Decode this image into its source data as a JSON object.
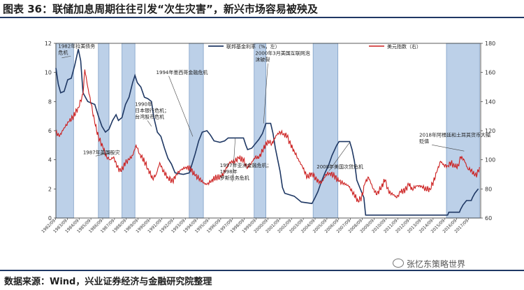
{
  "header": {
    "title": "图表 36：联储加息周期往往引发“次生灾害”，新兴市场容易被殃及"
  },
  "footer": {
    "source": "数据来源：Wind，兴业证券经济与金融研究院整理",
    "watermark": "张忆东策略世界"
  },
  "colors": {
    "fed": "#1f3864",
    "dollar": "#cc1f1f",
    "shade": "#bcd0e8",
    "shade_edge": "#7f9fc6"
  },
  "chart_data": {
    "type": "line",
    "legend_position": "top",
    "y_left": {
      "lim": [
        0,
        12
      ],
      "ticks": [
        0,
        2,
        4,
        6,
        8,
        10,
        12
      ]
    },
    "y_right": {
      "lim": [
        60,
        180
      ],
      "ticks": [
        60,
        80,
        100,
        120,
        140,
        160,
        180
      ]
    },
    "x_ticks": [
      "1982/09",
      "1983/09",
      "1984/09",
      "1985/09",
      "1986/09",
      "1987/09",
      "1988/09",
      "1989/09",
      "1990/09",
      "1991/09",
      "1992/09",
      "1993/09",
      "1994/09",
      "1995/09",
      "1996/09",
      "1997/09",
      "1998/09",
      "1999/09",
      "2000/09",
      "2001/09",
      "2002/09",
      "2003/09",
      "2004/09",
      "2005/09",
      "2006/09",
      "2007/09",
      "2008/09",
      "2009/09",
      "2010/09",
      "2011/09",
      "2012/09",
      "2013/09",
      "2014/09",
      "2015/09",
      "2016/09",
      "2017/09"
    ],
    "series": [
      {
        "name": "联邦基金利率（%，左）",
        "axis": "left",
        "points": [
          [
            1982.7,
            10.3
          ],
          [
            1982.9,
            9.2
          ],
          [
            1983.1,
            8.6
          ],
          [
            1983.4,
            8.7
          ],
          [
            1983.7,
            9.5
          ],
          [
            1984.0,
            9.6
          ],
          [
            1984.3,
            10.5
          ],
          [
            1984.6,
            11.6
          ],
          [
            1984.8,
            10.8
          ],
          [
            1985.0,
            8.6
          ],
          [
            1985.4,
            8.0
          ],
          [
            1985.7,
            7.9
          ],
          [
            1986.0,
            7.8
          ],
          [
            1986.3,
            7.0
          ],
          [
            1986.6,
            6.3
          ],
          [
            1986.9,
            5.9
          ],
          [
            1987.2,
            6.1
          ],
          [
            1987.5,
            6.7
          ],
          [
            1987.8,
            7.1
          ],
          [
            1988.0,
            6.7
          ],
          [
            1988.3,
            6.9
          ],
          [
            1988.6,
            7.8
          ],
          [
            1988.9,
            8.3
          ],
          [
            1989.2,
            9.3
          ],
          [
            1989.4,
            9.8
          ],
          [
            1989.6,
            9.3
          ],
          [
            1989.9,
            9.0
          ],
          [
            1990.2,
            8.3
          ],
          [
            1990.5,
            8.2
          ],
          [
            1990.8,
            8.0
          ],
          [
            1991.0,
            6.9
          ],
          [
            1991.3,
            5.9
          ],
          [
            1991.6,
            5.6
          ],
          [
            1991.9,
            4.8
          ],
          [
            1992.2,
            4.1
          ],
          [
            1992.5,
            3.7
          ],
          [
            1992.8,
            3.1
          ],
          [
            1993.5,
            3.0
          ],
          [
            1994.0,
            3.1
          ],
          [
            1994.2,
            3.6
          ],
          [
            1994.5,
            4.4
          ],
          [
            1994.8,
            5.3
          ],
          [
            1995.1,
            5.9
          ],
          [
            1995.5,
            6.0
          ],
          [
            1995.8,
            5.7
          ],
          [
            1996.1,
            5.3
          ],
          [
            1996.6,
            5.2
          ],
          [
            1997.0,
            5.3
          ],
          [
            1997.3,
            5.5
          ],
          [
            1997.8,
            5.5
          ],
          [
            1998.6,
            5.5
          ],
          [
            1998.8,
            5.0
          ],
          [
            1998.95,
            4.7
          ],
          [
            1999.3,
            4.8
          ],
          [
            1999.6,
            5.1
          ],
          [
            1999.9,
            5.4
          ],
          [
            2000.2,
            5.8
          ],
          [
            2000.5,
            6.5
          ],
          [
            2000.9,
            6.5
          ],
          [
            2001.1,
            5.8
          ],
          [
            2001.3,
            4.8
          ],
          [
            2001.5,
            4.0
          ],
          [
            2001.7,
            3.2
          ],
          [
            2001.9,
            2.1
          ],
          [
            2002.1,
            1.7
          ],
          [
            2002.9,
            1.5
          ],
          [
            2003.5,
            1.1
          ],
          [
            2004.4,
            1.0
          ],
          [
            2004.6,
            1.3
          ],
          [
            2004.9,
            1.8
          ],
          [
            2005.2,
            2.5
          ],
          [
            2005.5,
            3.1
          ],
          [
            2005.8,
            3.6
          ],
          [
            2006.1,
            4.3
          ],
          [
            2006.5,
            5.0
          ],
          [
            2006.7,
            5.25
          ],
          [
            2007.6,
            5.25
          ],
          [
            2007.8,
            4.7
          ],
          [
            2008.0,
            3.9
          ],
          [
            2008.2,
            2.6
          ],
          [
            2008.5,
            2.0
          ],
          [
            2008.8,
            1.4
          ],
          [
            2008.95,
            0.2
          ],
          [
            2015.9,
            0.2
          ],
          [
            2016.0,
            0.4
          ],
          [
            2016.9,
            0.4
          ],
          [
            2017.0,
            0.6
          ],
          [
            2017.2,
            0.9
          ],
          [
            2017.5,
            1.2
          ],
          [
            2017.9,
            1.2
          ],
          [
            2018.0,
            1.4
          ],
          [
            2018.2,
            1.7
          ],
          [
            2018.4,
            1.9
          ],
          [
            2018.5,
            2.0
          ]
        ]
      },
      {
        "name": "美元指数（右）",
        "axis": "right",
        "points": [
          [
            1982.7,
            119
          ],
          [
            1983.0,
            116
          ],
          [
            1983.4,
            122
          ],
          [
            1983.8,
            126
          ],
          [
            1984.2,
            130
          ],
          [
            1984.6,
            136
          ],
          [
            1985.0,
            145
          ],
          [
            1985.15,
            162
          ],
          [
            1985.4,
            150
          ],
          [
            1985.7,
            138
          ],
          [
            1986.0,
            125
          ],
          [
            1986.3,
            116
          ],
          [
            1986.7,
            108
          ],
          [
            1987.0,
            102
          ],
          [
            1987.3,
            100
          ],
          [
            1987.6,
            102
          ],
          [
            1987.9,
            95
          ],
          [
            1988.2,
            92
          ],
          [
            1988.6,
            98
          ],
          [
            1988.9,
            100
          ],
          [
            1989.2,
            103
          ],
          [
            1989.5,
            110
          ],
          [
            1989.8,
            104
          ],
          [
            1990.2,
            99
          ],
          [
            1990.5,
            94
          ],
          [
            1990.9,
            87
          ],
          [
            1991.2,
            90
          ],
          [
            1991.5,
            98
          ],
          [
            1991.8,
            92
          ],
          [
            1992.2,
            88
          ],
          [
            1992.6,
            85
          ],
          [
            1992.9,
            90
          ],
          [
            1993.3,
            93
          ],
          [
            1993.7,
            95
          ],
          [
            1994.1,
            94
          ],
          [
            1994.5,
            89
          ],
          [
            1994.9,
            87
          ],
          [
            1995.2,
            84
          ],
          [
            1995.5,
            83
          ],
          [
            1995.9,
            86
          ],
          [
            1996.3,
            88
          ],
          [
            1996.7,
            88
          ],
          [
            1997.0,
            92
          ],
          [
            1997.4,
            98
          ],
          [
            1997.8,
            99
          ],
          [
            1998.2,
            101
          ],
          [
            1998.6,
            100
          ],
          [
            1998.9,
            94
          ],
          [
            1999.2,
            97
          ],
          [
            1999.6,
            102
          ],
          [
            1999.9,
            101
          ],
          [
            2000.3,
            108
          ],
          [
            2000.7,
            113
          ],
          [
            2001.0,
            111
          ],
          [
            2001.4,
            117
          ],
          [
            2001.7,
            119
          ],
          [
            2002.0,
            118
          ],
          [
            2002.3,
            116
          ],
          [
            2002.6,
            110
          ],
          [
            2002.9,
            106
          ],
          [
            2003.2,
            101
          ],
          [
            2003.6,
            95
          ],
          [
            2004.0,
            88
          ],
          [
            2004.4,
            91
          ],
          [
            2004.8,
            86
          ],
          [
            2005.2,
            84
          ],
          [
            2005.6,
            90
          ],
          [
            2005.9,
            91
          ],
          [
            2006.3,
            89
          ],
          [
            2006.7,
            85
          ],
          [
            2007.1,
            84
          ],
          [
            2007.5,
            82
          ],
          [
            2007.9,
            77
          ],
          [
            2008.3,
            72
          ],
          [
            2008.6,
            74
          ],
          [
            2008.9,
            84
          ],
          [
            2009.2,
            88
          ],
          [
            2009.6,
            80
          ],
          [
            2009.9,
            76
          ],
          [
            2010.3,
            82
          ],
          [
            2010.6,
            86
          ],
          [
            2010.9,
            78
          ],
          [
            2011.3,
            76
          ],
          [
            2011.6,
            74
          ],
          [
            2011.9,
            78
          ],
          [
            2012.3,
            79
          ],
          [
            2012.6,
            83
          ],
          [
            2012.9,
            80
          ],
          [
            2013.3,
            82
          ],
          [
            2013.7,
            82
          ],
          [
            2014.0,
            80
          ],
          [
            2014.4,
            80
          ],
          [
            2014.7,
            85
          ],
          [
            2015.0,
            92
          ],
          [
            2015.3,
            99
          ],
          [
            2015.6,
            96
          ],
          [
            2015.9,
            96
          ],
          [
            2016.2,
            98
          ],
          [
            2016.5,
            95
          ],
          [
            2016.8,
            96
          ],
          [
            2017.0,
            102
          ],
          [
            2017.3,
            100
          ],
          [
            2017.6,
            94
          ],
          [
            2017.9,
            93
          ],
          [
            2018.2,
            89
          ],
          [
            2018.4,
            90
          ],
          [
            2018.6,
            95
          ]
        ]
      }
    ],
    "shaded_periods": [
      [
        1982.7,
        1984.2
      ],
      [
        1986.3,
        1987.2
      ],
      [
        1988.3,
        1989.4
      ],
      [
        1994.0,
        1995.2
      ],
      [
        1999.5,
        2000.5
      ],
      [
        2004.5,
        2006.6
      ],
      [
        2015.8,
        2018.6
      ]
    ],
    "annotations": [
      {
        "lines": [
          "1982年拉美债务",
          "危机"
        ],
        "year": 1982.9,
        "yl": 11.7,
        "target": [
          1983.2,
          11.0
        ]
      },
      {
        "lines": [
          "1987年美国股灾"
        ],
        "year": 1985.0,
        "yl": 4.4,
        "target": [
          1987.4,
          4.5
        ]
      },
      {
        "lines": [
          "1990年",
          "日本银行危机；",
          "台湾股市危机"
        ],
        "year": 1989.4,
        "yl": 7.7,
        "target": [
          1990.8,
          6.3
        ]
      },
      {
        "lines": [
          "1994年墨西哥金融危机"
        ],
        "year": 1991.2,
        "yl": 9.9,
        "target": [
          1994.3,
          5.6
        ]
      },
      {
        "lines": [
          "1997年亚洲金融危机；",
          "1998年",
          "罗斯债务危机"
        ],
        "year": 1996.6,
        "yl": 3.5,
        "target": [
          1997.9,
          5.5
        ]
      },
      {
        "lines": [
          "2000年3月美国互联网泡",
          "沫破裂"
        ],
        "year": 1999.6,
        "yl": 11.2,
        "target": [
          2000.3,
          6.5
        ]
      },
      {
        "lines": [
          "2008年美国次贷危机"
        ],
        "year": 2004.8,
        "yl": 3.4,
        "target": [
          2007.6,
          5.2
        ]
      },
      {
        "lines": [
          "2018年阿根廷和土耳其货币大幅",
          "贬值"
        ],
        "year": 2013.5,
        "yl": 5.6,
        "target": [
          2017.3,
          4.6
        ]
      }
    ]
  }
}
